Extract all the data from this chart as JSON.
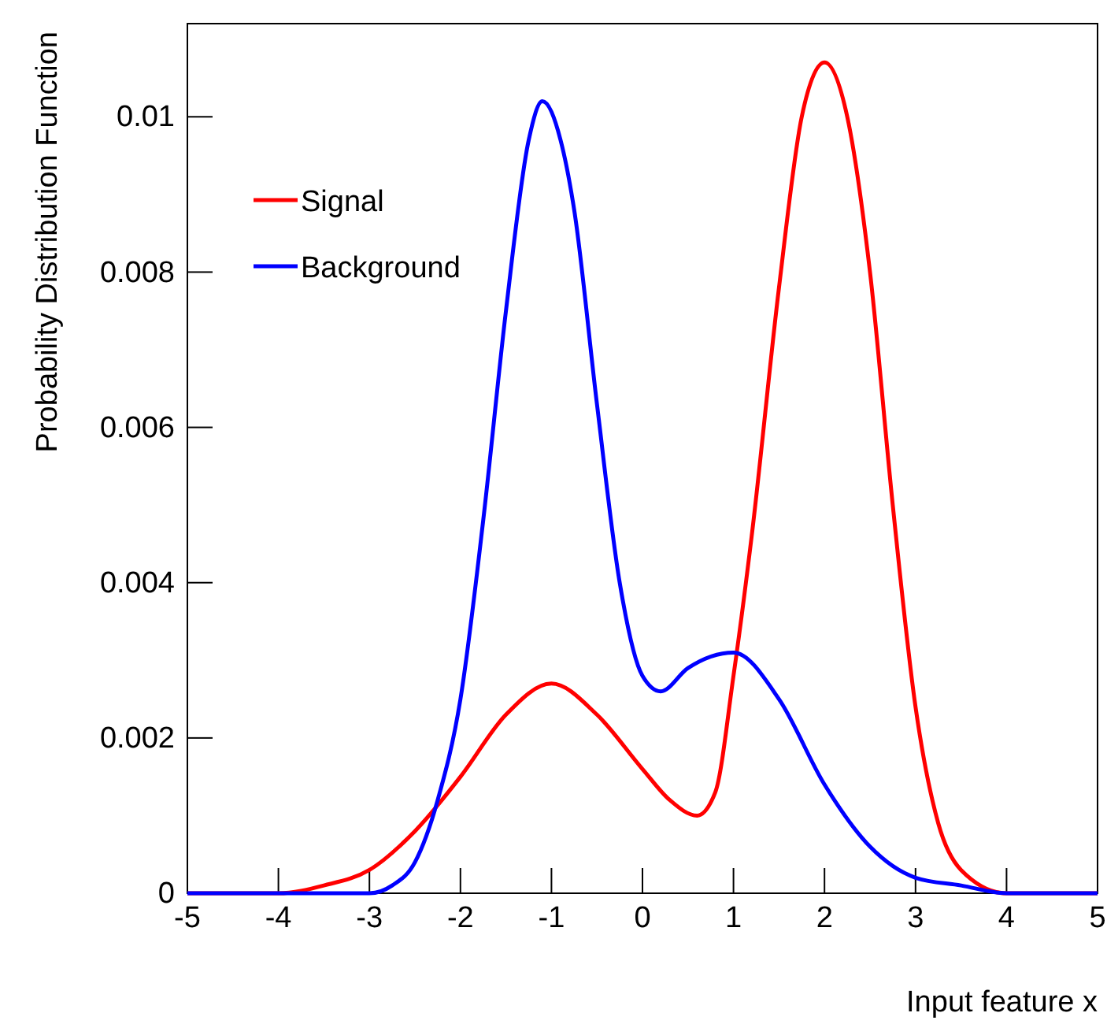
{
  "chart_data": {
    "type": "line",
    "xlabel": "Input feature x",
    "ylabel": "Probability Distribution Function",
    "xlim": [
      -5,
      5
    ],
    "ylim": [
      0,
      0.0112
    ],
    "xticks": [
      -5,
      -4,
      -3,
      -2,
      -1,
      0,
      1,
      2,
      3,
      4,
      5
    ],
    "yticks": [
      0,
      0.002,
      0.004,
      0.006,
      0.008,
      {
        "value": 0.01,
        "label": "0.01"
      }
    ],
    "legend": "top left",
    "grid": false,
    "marker": "none",
    "line_style": "solid",
    "series": [
      {
        "name": "Signal",
        "color": "#ff0000",
        "x": [
          -5,
          -4,
          -3.5,
          -3,
          -2.5,
          -2,
          -1.5,
          -1,
          -0.5,
          0,
          0.3,
          0.6,
          0.8,
          1,
          1.2,
          1.5,
          1.75,
          2,
          2.25,
          2.5,
          2.75,
          3,
          3.25,
          3.5,
          4,
          5
        ],
        "values": [
          0,
          0,
          0.0001,
          0.0003,
          0.0008,
          0.0015,
          0.0023,
          0.0027,
          0.0023,
          0.0016,
          0.0012,
          0.001,
          0.0013,
          0.0028,
          0.0046,
          0.0078,
          0.01,
          0.0107,
          0.01,
          0.008,
          0.005,
          0.0024,
          0.0009,
          0.0003,
          0,
          0
        ]
      },
      {
        "name": "Background",
        "color": "#0000ff",
        "x": [
          -5,
          -3,
          -2.75,
          -2.5,
          -2.25,
          -2,
          -1.75,
          -1.5,
          -1.25,
          -1.1,
          -0.9,
          -0.75,
          -0.5,
          -0.25,
          0,
          0.2,
          0.5,
          1,
          1.5,
          2,
          2.5,
          3,
          3.5,
          4,
          5
        ],
        "values": [
          0,
          0,
          0.0001,
          0.0004,
          0.0012,
          0.0025,
          0.0048,
          0.0075,
          0.0097,
          0.0102,
          0.0097,
          0.0088,
          0.0063,
          0.004,
          0.0028,
          0.0026,
          0.0029,
          0.0031,
          0.0025,
          0.0014,
          0.0006,
          0.0002,
          0.0001,
          0,
          0
        ]
      }
    ]
  }
}
